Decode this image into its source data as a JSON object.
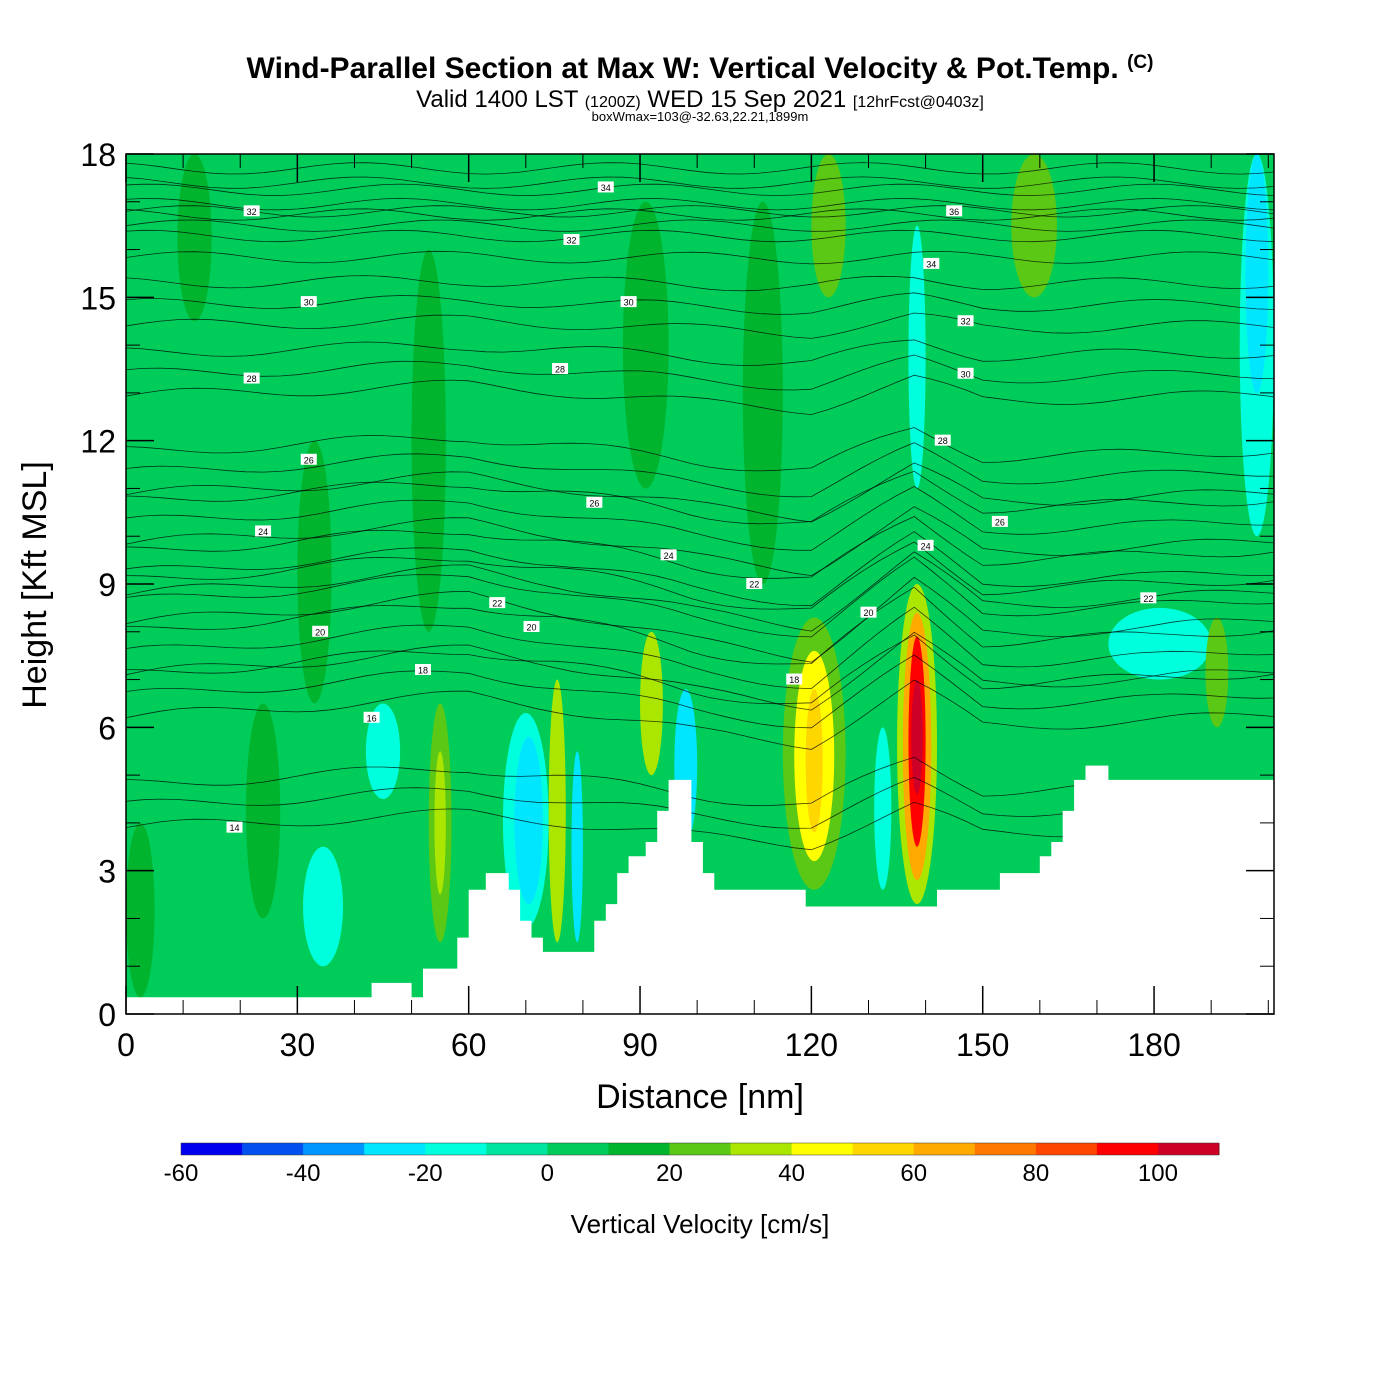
{
  "header": {
    "title": "Wind-Parallel Section at Max W: Vertical Velocity & Pot.Temp.",
    "copyright": "(C)",
    "valid_prefix": "Valid 1400 LST",
    "valid_utc": "(1200Z)",
    "valid_date": "WED 15 Sep 2021",
    "forecast": "[12hrFcst@0403z]",
    "box_info": "boxWmax=103@-32.63,22.21,1899m"
  },
  "chart_data": {
    "type": "heatmap",
    "xlabel": "Distance [nm]",
    "ylabel": "Height [Kft MSL]",
    "xlim": [
      0,
      201
    ],
    "ylim": [
      0,
      18
    ],
    "x_ticks": [
      "0",
      "30",
      "60",
      "90",
      "120",
      "150",
      "180"
    ],
    "y_ticks": [
      "0",
      "3",
      "6",
      "9",
      "12",
      "15",
      "18"
    ],
    "colorbar": {
      "title": "Vertical Velocity [cm/s]",
      "labels": [
        "-60",
        "-40",
        "-20",
        "0",
        "20",
        "40",
        "60",
        "80",
        "100"
      ],
      "levels": [
        -60,
        -50,
        -40,
        -30,
        -20,
        -10,
        0,
        10,
        20,
        30,
        40,
        50,
        60,
        70,
        80,
        90,
        100,
        110
      ],
      "colors": [
        "#0000ee",
        "#0050f0",
        "#0096ff",
        "#00e6ff",
        "#00ffdc",
        "#00e6a0",
        "#00cc5a",
        "#00b42d",
        "#5ac814",
        "#aae600",
        "#ffff00",
        "#ffd700",
        "#ffaa00",
        "#ff7800",
        "#ff4600",
        "#ff0000",
        "#cd0028"
      ]
    },
    "background_value": 5,
    "terrain_kft": [
      [
        0,
        0.35
      ],
      [
        43,
        0.35
      ],
      [
        43,
        0.65
      ],
      [
        50,
        0.65
      ],
      [
        50,
        0.35
      ],
      [
        52,
        0.35
      ],
      [
        52,
        0.95
      ],
      [
        58,
        0.95
      ],
      [
        58,
        1.6
      ],
      [
        60,
        1.6
      ],
      [
        60,
        2.6
      ],
      [
        63,
        2.6
      ],
      [
        63,
        2.95
      ],
      [
        67,
        2.95
      ],
      [
        67,
        2.6
      ],
      [
        69,
        2.6
      ],
      [
        69,
        1.95
      ],
      [
        71,
        1.95
      ],
      [
        71,
        1.6
      ],
      [
        73,
        1.6
      ],
      [
        73,
        1.3
      ],
      [
        82,
        1.3
      ],
      [
        82,
        1.95
      ],
      [
        84,
        1.95
      ],
      [
        84,
        2.3
      ],
      [
        86,
        2.3
      ],
      [
        86,
        2.95
      ],
      [
        88,
        2.95
      ],
      [
        88,
        3.3
      ],
      [
        91,
        3.3
      ],
      [
        91,
        3.6
      ],
      [
        93,
        3.6
      ],
      [
        93,
        4.25
      ],
      [
        95,
        4.25
      ],
      [
        95,
        4.9
      ],
      [
        99,
        4.9
      ],
      [
        99,
        3.6
      ],
      [
        101,
        3.6
      ],
      [
        101,
        2.95
      ],
      [
        103,
        2.95
      ],
      [
        103,
        2.6
      ],
      [
        119,
        2.6
      ],
      [
        119,
        2.25
      ],
      [
        142,
        2.25
      ],
      [
        142,
        2.6
      ],
      [
        153,
        2.6
      ],
      [
        153,
        2.95
      ],
      [
        160,
        2.95
      ],
      [
        160,
        3.3
      ],
      [
        162,
        3.3
      ],
      [
        162,
        3.6
      ],
      [
        164,
        3.6
      ],
      [
        164,
        4.25
      ],
      [
        166,
        4.25
      ],
      [
        166,
        4.9
      ],
      [
        168,
        4.9
      ],
      [
        168,
        5.2
      ],
      [
        172,
        5.2
      ],
      [
        172,
        4.9
      ],
      [
        201,
        4.9
      ]
    ],
    "vertical_velocity_cells": [
      {
        "x": [
          53,
          57
        ],
        "y": [
          1.5,
          6.5
        ],
        "value": 25
      },
      {
        "x": [
          54,
          56
        ],
        "y": [
          2.5,
          5.5
        ],
        "value": 35
      },
      {
        "x": [
          66,
          74
        ],
        "y": [
          1.8,
          6.3
        ],
        "value": -15
      },
      {
        "x": [
          68,
          73
        ],
        "y": [
          2.3,
          5.8
        ],
        "value": -25
      },
      {
        "x": [
          74,
          77
        ],
        "y": [
          1.5,
          7.0
        ],
        "value": 35
      },
      {
        "x": [
          78,
          80
        ],
        "y": [
          1.5,
          5.5
        ],
        "value": -25
      },
      {
        "x": [
          90,
          94
        ],
        "y": [
          5.0,
          8.0
        ],
        "value": 35
      },
      {
        "x": [
          96,
          100
        ],
        "y": [
          3.6,
          6.8
        ],
        "value": -30
      },
      {
        "x": [
          115,
          126
        ],
        "y": [
          2.6,
          8.3
        ],
        "value": 25
      },
      {
        "x": [
          117,
          124
        ],
        "y": [
          3.2,
          7.6
        ],
        "value": 40
      },
      {
        "x": [
          119,
          122
        ],
        "y": [
          3.8,
          6.8
        ],
        "value": 50
      },
      {
        "x": [
          131,
          134
        ],
        "y": [
          2.6,
          6.0
        ],
        "value": -15
      },
      {
        "x": [
          135,
          142
        ],
        "y": [
          2.3,
          9.0
        ],
        "value": 35
      },
      {
        "x": [
          136,
          141
        ],
        "y": [
          2.8,
          8.4
        ],
        "value": 60
      },
      {
        "x": [
          137,
          140
        ],
        "y": [
          3.5,
          7.9
        ],
        "value": 90
      },
      {
        "x": [
          137.5,
          139.5
        ],
        "y": [
          4.6,
          7.0
        ],
        "value": 103
      },
      {
        "x": [
          137,
          140
        ],
        "y": [
          11.0,
          16.5
        ],
        "value": -15
      },
      {
        "x": [
          195,
          201
        ],
        "y": [
          10.0,
          18.0
        ],
        "value": -15
      },
      {
        "x": [
          196,
          200
        ],
        "y": [
          13.0,
          18.0
        ],
        "value": -25
      },
      {
        "x": [
          172,
          190
        ],
        "y": [
          7.0,
          8.5
        ],
        "value": -15
      },
      {
        "x": [
          189,
          193
        ],
        "y": [
          6.0,
          8.3
        ],
        "value": 20
      },
      {
        "x": [
          9,
          15
        ],
        "y": [
          14.5,
          18.0
        ],
        "value": 15
      },
      {
        "x": [
          30,
          36
        ],
        "y": [
          6.5,
          12.0
        ],
        "value": 15
      },
      {
        "x": [
          50,
          56
        ],
        "y": [
          8.0,
          16.0
        ],
        "value": 15
      },
      {
        "x": [
          87,
          95
        ],
        "y": [
          11.0,
          17.0
        ],
        "value": 15
      },
      {
        "x": [
          108,
          115
        ],
        "y": [
          9.0,
          17.0
        ],
        "value": 15
      },
      {
        "x": [
          120,
          126
        ],
        "y": [
          15.0,
          18.0
        ],
        "value": 25
      },
      {
        "x": [
          155,
          163
        ],
        "y": [
          15.0,
          18.0
        ],
        "value": 25
      },
      {
        "x": [
          21,
          27
        ],
        "y": [
          2.0,
          6.5
        ],
        "value": 15
      },
      {
        "x": [
          0,
          5
        ],
        "y": [
          0.35,
          4.0
        ],
        "value": 15
      },
      {
        "x": [
          31,
          38
        ],
        "y": [
          1.0,
          3.5
        ],
        "value": -15
      },
      {
        "x": [
          42,
          48
        ],
        "y": [
          4.5,
          6.5
        ],
        "value": -15
      }
    ],
    "theta_contour_labels": [
      {
        "value": "14",
        "x": 19,
        "y": 3.9
      },
      {
        "value": "16",
        "x": 43,
        "y": 6.2
      },
      {
        "value": "18",
        "x": 52,
        "y": 7.2
      },
      {
        "value": "18",
        "x": 117,
        "y": 7.0
      },
      {
        "value": "20",
        "x": 34,
        "y": 8.0
      },
      {
        "value": "20",
        "x": 71,
        "y": 8.1
      },
      {
        "value": "20",
        "x": 130,
        "y": 8.4
      },
      {
        "value": "22",
        "x": 65,
        "y": 8.6
      },
      {
        "value": "22",
        "x": 110,
        "y": 9.0
      },
      {
        "value": "22",
        "x": 179,
        "y": 8.7
      },
      {
        "value": "24",
        "x": 24,
        "y": 10.1
      },
      {
        "value": "24",
        "x": 95,
        "y": 9.6
      },
      {
        "value": "24",
        "x": 140,
        "y": 9.8
      },
      {
        "value": "26",
        "x": 32,
        "y": 11.6
      },
      {
        "value": "26",
        "x": 82,
        "y": 10.7
      },
      {
        "value": "26",
        "x": 153,
        "y": 10.3
      },
      {
        "value": "28",
        "x": 22,
        "y": 13.3
      },
      {
        "value": "28",
        "x": 76,
        "y": 13.5
      },
      {
        "value": "28",
        "x": 143,
        "y": 12.0
      },
      {
        "value": "30",
        "x": 32,
        "y": 14.9
      },
      {
        "value": "30",
        "x": 88,
        "y": 14.9
      },
      {
        "value": "30",
        "x": 147,
        "y": 13.4
      },
      {
        "value": "32",
        "x": 22,
        "y": 16.8
      },
      {
        "value": "32",
        "x": 78,
        "y": 16.2
      },
      {
        "value": "32",
        "x": 147,
        "y": 14.5
      },
      {
        "value": "34",
        "x": 84,
        "y": 17.3
      },
      {
        "value": "34",
        "x": 141,
        "y": 15.7
      },
      {
        "value": "36",
        "x": 145,
        "y": 16.8
      }
    ]
  }
}
